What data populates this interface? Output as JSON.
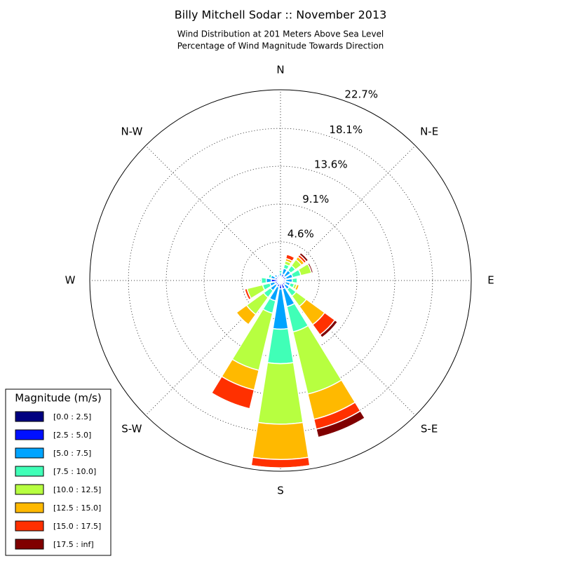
{
  "chart_data": {
    "type": "windrose",
    "title": "Billy Mitchell Sodar :: November 2013",
    "subtitle": [
      "Wind Distribution at 201 Meters Above Sea Level",
      "Percentage of Wind Magnitude Towards Direction"
    ],
    "x": [
      0,
      22.5,
      45,
      67.5,
      90,
      112.5,
      135,
      157.5,
      180,
      202.5,
      225,
      247.5,
      270,
      292.5,
      315,
      337.5
    ],
    "theta_labels": [
      {
        "value": 0,
        "label": "N"
      },
      {
        "value": 45,
        "label": "N-E"
      },
      {
        "value": 90,
        "label": "E"
      },
      {
        "value": 135,
        "label": "S-E"
      },
      {
        "value": 180,
        "label": "S"
      },
      {
        "value": 225,
        "label": "S-W"
      },
      {
        "value": 270,
        "label": "W"
      },
      {
        "value": 315,
        "label": "N-W"
      }
    ],
    "ylim": [
      0,
      22.7
    ],
    "yticks": [
      {
        "value": 4.6,
        "label": "4.6%"
      },
      {
        "value": 9.1,
        "label": "9.1%"
      },
      {
        "value": 13.6,
        "label": "13.6%"
      },
      {
        "value": 18.1,
        "label": "18.1%"
      },
      {
        "value": 22.7,
        "label": "22.7%"
      }
    ],
    "grid": true,
    "legend_title": "Magnitude (m/s)",
    "legend_position": "lower-left",
    "series": [
      {
        "name": "[0.0 : 2.5]",
        "color": "#000080",
        "values": [
          0.2,
          0.2,
          0.2,
          0.2,
          0.2,
          0.2,
          0.2,
          0.2,
          0.25,
          0.2,
          0.2,
          0.2,
          0.3,
          0.2,
          0.2,
          0.2
        ]
      },
      {
        "name": "[2.5 : 5.0]",
        "color": "#0010ff",
        "values": [
          0.3,
          0.6,
          0.5,
          0.5,
          0.4,
          0.4,
          0.5,
          0.8,
          0.75,
          0.6,
          0.5,
          0.5,
          0.8,
          0.5,
          0.4,
          0.3
        ]
      },
      {
        "name": "[5.0 : 7.5]",
        "color": "#00a4ff",
        "values": [
          0.4,
          0.7,
          0.8,
          0.8,
          0.8,
          0.6,
          0.6,
          2.2,
          4.8,
          1.7,
          0.8,
          0.6,
          0.6,
          0.5,
          0.3,
          0.2
        ]
      },
      {
        "name": "[7.5 : 10.0]",
        "color": "#40ffb7",
        "values": [
          0.3,
          0.5,
          0.7,
          1.0,
          0.6,
          0.5,
          1.0,
          3.1,
          4.1,
          1.5,
          1.0,
          0.9,
          0.6,
          0.3,
          0.1,
          0.1
        ]
      },
      {
        "name": "[10.0 : 12.5]",
        "color": "#b7ff40",
        "values": [
          0,
          0.4,
          0.9,
          1.3,
          0,
          0.3,
          1.5,
          7.6,
          7.2,
          7.0,
          2.5,
          1.9,
          0,
          0,
          0,
          0
        ]
      },
      {
        "name": "[12.5 : 15.0]",
        "color": "#ffb900",
        "values": [
          0,
          0.3,
          0.4,
          0,
          0,
          0.3,
          2.7,
          3.1,
          4.2,
          2.4,
          1.5,
          0,
          0,
          0,
          0,
          0
        ]
      },
      {
        "name": "[15.0 : 17.5]",
        "color": "#ff3000",
        "values": [
          0,
          0.5,
          0.3,
          0,
          0,
          0,
          1.5,
          1.2,
          1.0,
          2.3,
          0,
          0.3,
          0,
          0,
          0,
          0
        ]
      },
      {
        "name": "[17.5 : inf]",
        "color": "#800000",
        "values": [
          0,
          0.1,
          0.3,
          0.2,
          0,
          0,
          0.4,
          1.0,
          0,
          0,
          0,
          0,
          0,
          0,
          0,
          0
        ]
      }
    ]
  }
}
